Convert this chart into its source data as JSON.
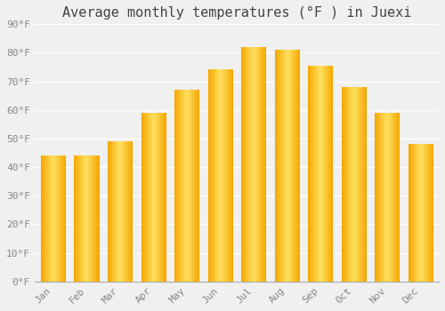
{
  "title": "Average monthly temperatures (°F ) in Juexi",
  "months": [
    "Jan",
    "Feb",
    "Mar",
    "Apr",
    "May",
    "Jun",
    "Jul",
    "Aug",
    "Sep",
    "Oct",
    "Nov",
    "Dec"
  ],
  "values": [
    44,
    44,
    49,
    59,
    67,
    74,
    82,
    81,
    75.5,
    68,
    59,
    48
  ],
  "ylim": [
    0,
    90
  ],
  "yticks": [
    0,
    10,
    20,
    30,
    40,
    50,
    60,
    70,
    80,
    90
  ],
  "ytick_labels": [
    "0°F",
    "10°F",
    "20°F",
    "30°F",
    "40°F",
    "50°F",
    "60°F",
    "70°F",
    "80°F",
    "90°F"
  ],
  "background_color": "#f0f0f0",
  "grid_color": "#ffffff",
  "bar_color_edge": "#F5A800",
  "bar_color_center": "#FFE060",
  "title_fontsize": 11,
  "tick_fontsize": 8
}
